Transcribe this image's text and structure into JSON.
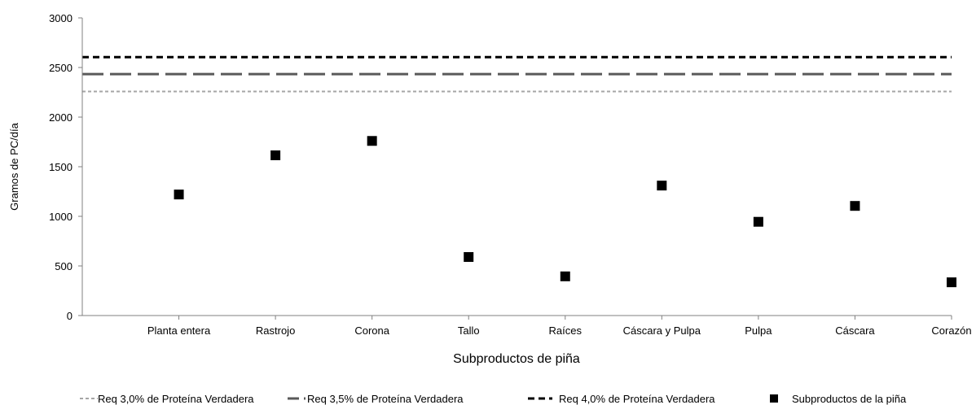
{
  "chart_data": {
    "type": "scatter",
    "title": "",
    "xlabel": "Subproductos de piña",
    "ylabel": "Gramos de PC/día",
    "ylim": [
      0,
      3000
    ],
    "yticks": [
      0,
      500,
      1000,
      1500,
      2000,
      2500,
      3000
    ],
    "categories": [
      "Planta entera",
      "Rastrojo",
      "Corona",
      "Tallo",
      "Raíces",
      "Cáscara y Pulpa",
      "Pulpa",
      "Cáscara",
      "Corazón"
    ],
    "series": [
      {
        "name": "Subproductos de la piña",
        "kind": "points",
        "color": "#000000",
        "values": [
          1220,
          1615,
          1760,
          590,
          395,
          1310,
          945,
          1105,
          335
        ]
      }
    ],
    "reference_lines": [
      {
        "name": "Req 3,0% de Proteína Verdadera",
        "value": 2258,
        "color": "#a6a6a6",
        "style": "short-dash"
      },
      {
        "name": "Req 3,5% de Proteína Verdadera",
        "value": 2433,
        "color": "#595959",
        "style": "long-dash"
      },
      {
        "name": "Req 4,0% de Proteína Verdadera",
        "value": 2605,
        "color": "#000000",
        "style": "dash"
      }
    ],
    "grid": false,
    "legend_position": "bottom"
  }
}
